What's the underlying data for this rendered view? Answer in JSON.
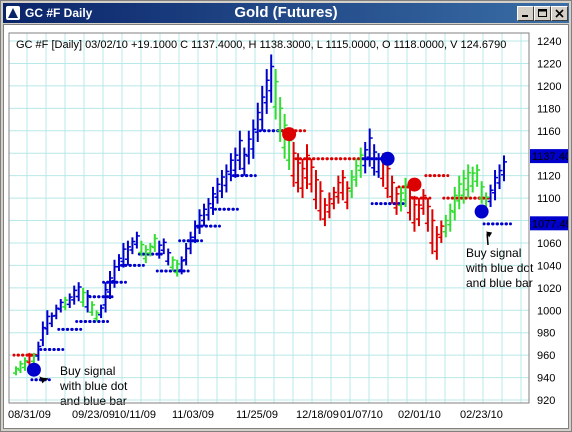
{
  "window": {
    "title": "GC #F Daily"
  },
  "chart_data": {
    "type": "ohlc",
    "title": "Gold (Futures)",
    "header": "GC #F [Daily] 03/02/10  +19.1000 C 1137.4000, H 1138.3000, L 1115.0000, O 1118.0000, V 124.6790",
    "ylim": [
      920,
      1250
    ],
    "y_ticks": [
      "1240",
      "1220",
      "1200",
      "1180",
      "1160",
      "1140",
      "1120",
      "1100",
      "1080",
      "1060",
      "1040",
      "1020",
      "1000",
      "980",
      "960",
      "940",
      "920"
    ],
    "x_ticks": [
      "08/31/09",
      "09/23/09",
      "10/11/09",
      "11/03/09",
      "11/25/09",
      "12/18/09",
      "01/07/10",
      "02/01/10",
      "02/23/10"
    ],
    "price_labels": [
      {
        "text": "1137.400",
        "value": 1137.4,
        "color": "#0000cc",
        "text_color": "#ffffff"
      },
      {
        "text": "1077.490",
        "value": 1077.49,
        "color": "#0000cc",
        "text_color": "#ffffff"
      }
    ],
    "colors": {
      "up": "#0000cc",
      "down": "#dd0000",
      "neutral": "#33dd33",
      "grid": "#b8e8e8"
    },
    "trend_bars": [
      [
        "g",
        942,
        950
      ],
      [
        "g",
        944,
        955
      ],
      [
        "g",
        946,
        958
      ],
      [
        "r",
        951,
        962
      ],
      [
        "g",
        952,
        962
      ],
      [
        "b",
        955,
        972
      ],
      [
        "b",
        968,
        990
      ],
      [
        "b",
        978,
        1000
      ],
      [
        "b",
        985,
        998
      ],
      [
        "b",
        992,
        1005
      ],
      [
        "b",
        998,
        1010
      ],
      [
        "g",
        1000,
        1012
      ],
      [
        "b",
        1002,
        1015
      ],
      [
        "b",
        1005,
        1022
      ],
      [
        "b",
        1008,
        1025
      ],
      [
        "g",
        1003,
        1020
      ],
      [
        "b",
        998,
        1018
      ],
      [
        "g",
        995,
        1008
      ],
      [
        "g",
        990,
        1000
      ],
      [
        "b",
        993,
        1005
      ],
      [
        "b",
        998,
        1025
      ],
      [
        "b",
        1010,
        1035
      ],
      [
        "b",
        1020,
        1045
      ],
      [
        "b",
        1035,
        1050
      ],
      [
        "b",
        1038,
        1060
      ],
      [
        "b",
        1040,
        1062
      ],
      [
        "b",
        1050,
        1065
      ],
      [
        "b",
        1055,
        1070
      ],
      [
        "g",
        1048,
        1062
      ],
      [
        "g",
        1042,
        1058
      ],
      [
        "g",
        1048,
        1060
      ],
      [
        "g",
        1052,
        1068
      ],
      [
        "b",
        1046,
        1062
      ],
      [
        "b",
        1050,
        1064
      ],
      [
        "b",
        1040,
        1055
      ],
      [
        "g",
        1035,
        1048
      ],
      [
        "g",
        1030,
        1045
      ],
      [
        "b",
        1032,
        1048
      ],
      [
        "b",
        1040,
        1060
      ],
      [
        "b",
        1050,
        1070
      ],
      [
        "b",
        1060,
        1080
      ],
      [
        "b",
        1068,
        1090
      ],
      [
        "b",
        1075,
        1095
      ],
      [
        "b",
        1080,
        1100
      ],
      [
        "b",
        1085,
        1110
      ],
      [
        "b",
        1095,
        1118
      ],
      [
        "b",
        1100,
        1125
      ],
      [
        "b",
        1105,
        1130
      ],
      [
        "b",
        1115,
        1140
      ],
      [
        "b",
        1118,
        1145
      ],
      [
        "b",
        1125,
        1160
      ],
      [
        "b",
        1120,
        1145
      ],
      [
        "b",
        1130,
        1160
      ],
      [
        "b",
        1135,
        1170
      ],
      [
        "b",
        1150,
        1185
      ],
      [
        "b",
        1160,
        1200
      ],
      [
        "b",
        1175,
        1215
      ],
      [
        "b",
        1185,
        1228
      ],
      [
        "g",
        1170,
        1215
      ],
      [
        "g",
        1150,
        1190
      ],
      [
        "g",
        1135,
        1175
      ],
      [
        "g",
        1125,
        1160
      ],
      [
        "r",
        1110,
        1150
      ],
      [
        "r",
        1105,
        1140
      ],
      [
        "r",
        1100,
        1135
      ],
      [
        "r",
        1108,
        1148
      ],
      [
        "r",
        1105,
        1135
      ],
      [
        "r",
        1090,
        1125
      ],
      [
        "r",
        1080,
        1115
      ],
      [
        "r",
        1075,
        1100
      ],
      [
        "r",
        1082,
        1105
      ],
      [
        "r",
        1090,
        1110
      ],
      [
        "r",
        1095,
        1120
      ],
      [
        "r",
        1098,
        1125
      ],
      [
        "r",
        1090,
        1115
      ],
      [
        "g",
        1100,
        1125
      ],
      [
        "g",
        1110,
        1135
      ],
      [
        "g",
        1118,
        1145
      ],
      [
        "b",
        1122,
        1150
      ],
      [
        "b",
        1128,
        1162
      ],
      [
        "b",
        1120,
        1148
      ],
      [
        "b",
        1118,
        1140
      ],
      [
        "r",
        1110,
        1140
      ],
      [
        "r",
        1100,
        1135
      ],
      [
        "r",
        1095,
        1120
      ],
      [
        "r",
        1085,
        1110
      ],
      [
        "g",
        1088,
        1110
      ],
      [
        "g",
        1092,
        1118
      ],
      [
        "r",
        1080,
        1108
      ],
      [
        "r",
        1070,
        1102
      ],
      [
        "r",
        1075,
        1100
      ],
      [
        "r",
        1085,
        1108
      ],
      [
        "r",
        1070,
        1100
      ],
      [
        "r",
        1050,
        1090
      ],
      [
        "r",
        1045,
        1075
      ],
      [
        "r",
        1060,
        1080
      ],
      [
        "g",
        1065,
        1085
      ],
      [
        "g",
        1070,
        1095
      ],
      [
        "g",
        1080,
        1110
      ],
      [
        "g",
        1090,
        1120
      ],
      [
        "g",
        1095,
        1125
      ],
      [
        "g",
        1100,
        1130
      ],
      [
        "g",
        1105,
        1128
      ],
      [
        "g",
        1110,
        1130
      ],
      [
        "g",
        1095,
        1115
      ],
      [
        "g",
        1088,
        1105
      ],
      [
        "b",
        1092,
        1112
      ],
      [
        "b",
        1098,
        1125
      ],
      [
        "b",
        1108,
        1130
      ],
      [
        "b",
        1115,
        1138
      ]
    ],
    "stop_lines": [
      {
        "color": "#dd0000",
        "level": 960,
        "start": 0,
        "end": 4
      },
      {
        "color": "#0000cc",
        "level": 938,
        "start": 4,
        "end": 7
      },
      {
        "color": "#0000cc",
        "level": 965,
        "start": 6,
        "end": 10
      },
      {
        "color": "#0000cc",
        "level": 983,
        "start": 10,
        "end": 14
      },
      {
        "color": "#0000cc",
        "level": 990,
        "start": 14,
        "end": 20
      },
      {
        "color": "#0000cc",
        "level": 1012,
        "start": 17,
        "end": 21
      },
      {
        "color": "#0000cc",
        "level": 1025,
        "start": 20,
        "end": 24
      },
      {
        "color": "#0000cc",
        "level": 1040,
        "start": 24,
        "end": 28
      },
      {
        "color": "#0000cc",
        "level": 1050,
        "start": 28,
        "end": 32
      },
      {
        "color": "#0000cc",
        "level": 1035,
        "start": 32,
        "end": 38
      },
      {
        "color": "#0000cc",
        "level": 1062,
        "start": 37,
        "end": 41
      },
      {
        "color": "#0000cc",
        "level": 1075,
        "start": 41,
        "end": 45
      },
      {
        "color": "#0000cc",
        "level": 1090,
        "start": 45,
        "end": 49
      },
      {
        "color": "#0000cc",
        "level": 1120,
        "start": 49,
        "end": 53
      },
      {
        "color": "#0000cc",
        "level": 1160,
        "start": 55,
        "end": 60
      },
      {
        "color": "#dd0000",
        "level": 1160,
        "start": 60,
        "end": 64
      },
      {
        "color": "#dd0000",
        "level": 1135,
        "start": 63,
        "end": 78
      },
      {
        "color": "#0000cc",
        "level": 1135,
        "start": 78,
        "end": 82
      },
      {
        "color": "#0000cc",
        "level": 1095,
        "start": 80,
        "end": 86
      },
      {
        "color": "#dd0000",
        "level": 1110,
        "start": 86,
        "end": 89
      },
      {
        "color": "#dd0000",
        "level": 1100,
        "start": 89,
        "end": 92
      },
      {
        "color": "#dd0000",
        "level": 1120,
        "start": 92,
        "end": 96
      },
      {
        "color": "#dd0000",
        "level": 1100,
        "start": 96,
        "end": 103
      },
      {
        "color": "#dd0000",
        "level": 1100,
        "start": 103,
        "end": 105
      },
      {
        "color": "#0000cc",
        "level": 1077,
        "start": 105,
        "end": 110
      }
    ],
    "signal_dots": [
      {
        "color": "#0000cc",
        "index": 4,
        "value": 947
      },
      {
        "color": "#dd0000",
        "index": 61,
        "value": 1157
      },
      {
        "color": "#0000cc",
        "index": 83,
        "value": 1135
      },
      {
        "color": "#dd0000",
        "index": 89,
        "value": 1112
      },
      {
        "color": "#0000cc",
        "index": 104,
        "value": 1088
      }
    ],
    "annotations": [
      {
        "lines": [
          "Buy signal",
          "with blue dot",
          "and blue bar"
        ],
        "arrow_to_index": 5,
        "arrow_to_value": 942
      },
      {
        "lines": [
          "Buy signal",
          "with blue dot",
          "and blue bar"
        ],
        "arrow_to_index": 105,
        "arrow_to_value": 1072
      }
    ]
  }
}
